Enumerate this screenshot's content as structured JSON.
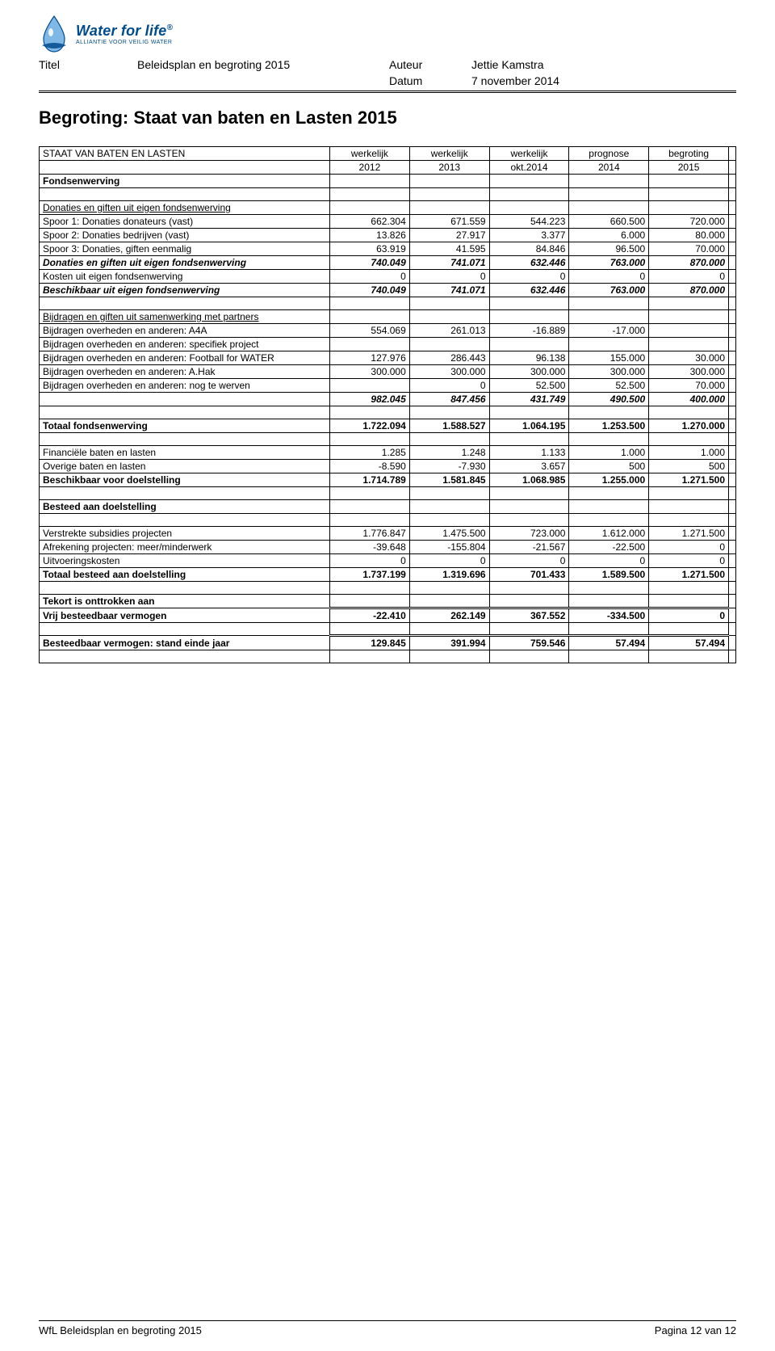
{
  "logo": {
    "main": "Water for life",
    "sub": "ALLIANTIE VOOR VEILIG WATER"
  },
  "meta": {
    "titel_label": "Titel",
    "titel_value": "Beleidsplan en begroting 2015",
    "auteur_label": "Auteur",
    "auteur_value": "Jettie Kamstra",
    "datum_label": "Datum",
    "datum_value": "7 november 2014"
  },
  "section_title": "Begroting: Staat van baten en Lasten 2015",
  "table": {
    "title": "STAAT VAN BATEN EN LASTEN",
    "col_head1": [
      "werkelijk",
      "werkelijk",
      "werkelijk",
      "prognose",
      "begroting"
    ],
    "col_head2": [
      "2012",
      "2013",
      "okt.2014",
      "2014",
      "2015"
    ],
    "fondsenwerving": "Fondsenwerving",
    "donaties_header": "Donaties en giften uit eigen fondsenwerving",
    "rows_donaties": [
      {
        "label": "Spoor 1: Donaties donateurs (vast)",
        "v": [
          "662.304",
          "671.559",
          "544.223",
          "660.500",
          "720.000"
        ]
      },
      {
        "label": "Spoor 2: Donaties bedrijven (vast)",
        "v": [
          "13.826",
          "27.917",
          "3.377",
          "6.000",
          "80.000"
        ]
      },
      {
        "label": "Spoor 3: Donaties, giften eenmalig",
        "v": [
          "63.919",
          "41.595",
          "84.846",
          "96.500",
          "70.000"
        ]
      }
    ],
    "donaties_total": {
      "label": "Donaties en giften uit eigen fondsenwerving",
      "v": [
        "740.049",
        "741.071",
        "632.446",
        "763.000",
        "870.000"
      ]
    },
    "kosten_row": {
      "label": "Kosten uit eigen fondsenwerving",
      "v": [
        "0",
        "0",
        "0",
        "0",
        "0"
      ]
    },
    "beschikbaar_row": {
      "label": "Beschikbaar uit eigen fondsenwerving",
      "v": [
        "740.049",
        "741.071",
        "632.446",
        "763.000",
        "870.000"
      ]
    },
    "bijdragen_header": "Bijdragen en giften uit samenwerking met partners",
    "rows_bijdragen": [
      {
        "label": "Bijdragen overheden en anderen: A4A",
        "v": [
          "554.069",
          "261.013",
          "-16.889",
          "-17.000",
          ""
        ]
      },
      {
        "label": "Bijdragen overheden en anderen: specifiek project",
        "v": [
          "",
          "",
          "",
          "",
          ""
        ]
      },
      {
        "label": "Bijdragen overheden en anderen: Football for WATER",
        "v": [
          "127.976",
          "286.443",
          "96.138",
          "155.000",
          "30.000"
        ]
      },
      {
        "label": "Bijdragen overheden en anderen: A.Hak",
        "v": [
          "300.000",
          "300.000",
          "300.000",
          "300.000",
          "300.000"
        ]
      },
      {
        "label": "Bijdragen overheden en anderen: nog te werven",
        "v": [
          "",
          "0",
          "52.500",
          "52.500",
          "70.000"
        ]
      }
    ],
    "bijdragen_subtotal": {
      "label": "",
      "v": [
        "982.045",
        "847.456",
        "431.749",
        "490.500",
        "400.000"
      ]
    },
    "totaal_fondsen": {
      "label": "Totaal fondsenwerving",
      "v": [
        "1.722.094",
        "1.588.527",
        "1.064.195",
        "1.253.500",
        "1.270.000"
      ]
    },
    "fin_rows": [
      {
        "label": "Financiële baten en lasten",
        "v": [
          "1.285",
          "1.248",
          "1.133",
          "1.000",
          "1.000"
        ]
      },
      {
        "label": "Overige baten en lasten",
        "v": [
          "-8.590",
          "-7.930",
          "3.657",
          "500",
          "500"
        ]
      }
    ],
    "beschikbaar_doel": {
      "label": "Beschikbaar voor doelstelling",
      "v": [
        "1.714.789",
        "1.581.845",
        "1.068.985",
        "1.255.000",
        "1.271.500"
      ]
    },
    "besteed_header": "Besteed aan doelstelling",
    "besteed_rows": [
      {
        "label": "Verstrekte subsidies projecten",
        "v": [
          "1.776.847",
          "1.475.500",
          "723.000",
          "1.612.000",
          "1.271.500"
        ]
      },
      {
        "label": "Afrekening projecten: meer/minderwerk",
        "v": [
          "-39.648",
          "-155.804",
          "-21.567",
          "-22.500",
          "0"
        ]
      },
      {
        "label": "Uitvoeringskosten",
        "v": [
          "0",
          "0",
          "0",
          "0",
          "0"
        ]
      }
    ],
    "totaal_besteed": {
      "label": "Totaal besteed aan doelstelling",
      "v": [
        "1.737.199",
        "1.319.696",
        "701.433",
        "1.589.500",
        "1.271.500"
      ]
    },
    "tekort_header": "Tekort is onttrokken aan",
    "vrij_row": {
      "label": "Vrij besteedbaar vermogen",
      "v": [
        "-22.410",
        "262.149",
        "367.552",
        "-334.500",
        "0"
      ]
    },
    "eind_row": {
      "label": "Besteedbaar vermogen: stand einde jaar",
      "v": [
        "129.845",
        "391.994",
        "759.546",
        "57.494",
        "57.494"
      ]
    }
  },
  "footer": {
    "left": "WfL Beleidsplan en begroting 2015",
    "right": "Pagina 12 van 12"
  }
}
